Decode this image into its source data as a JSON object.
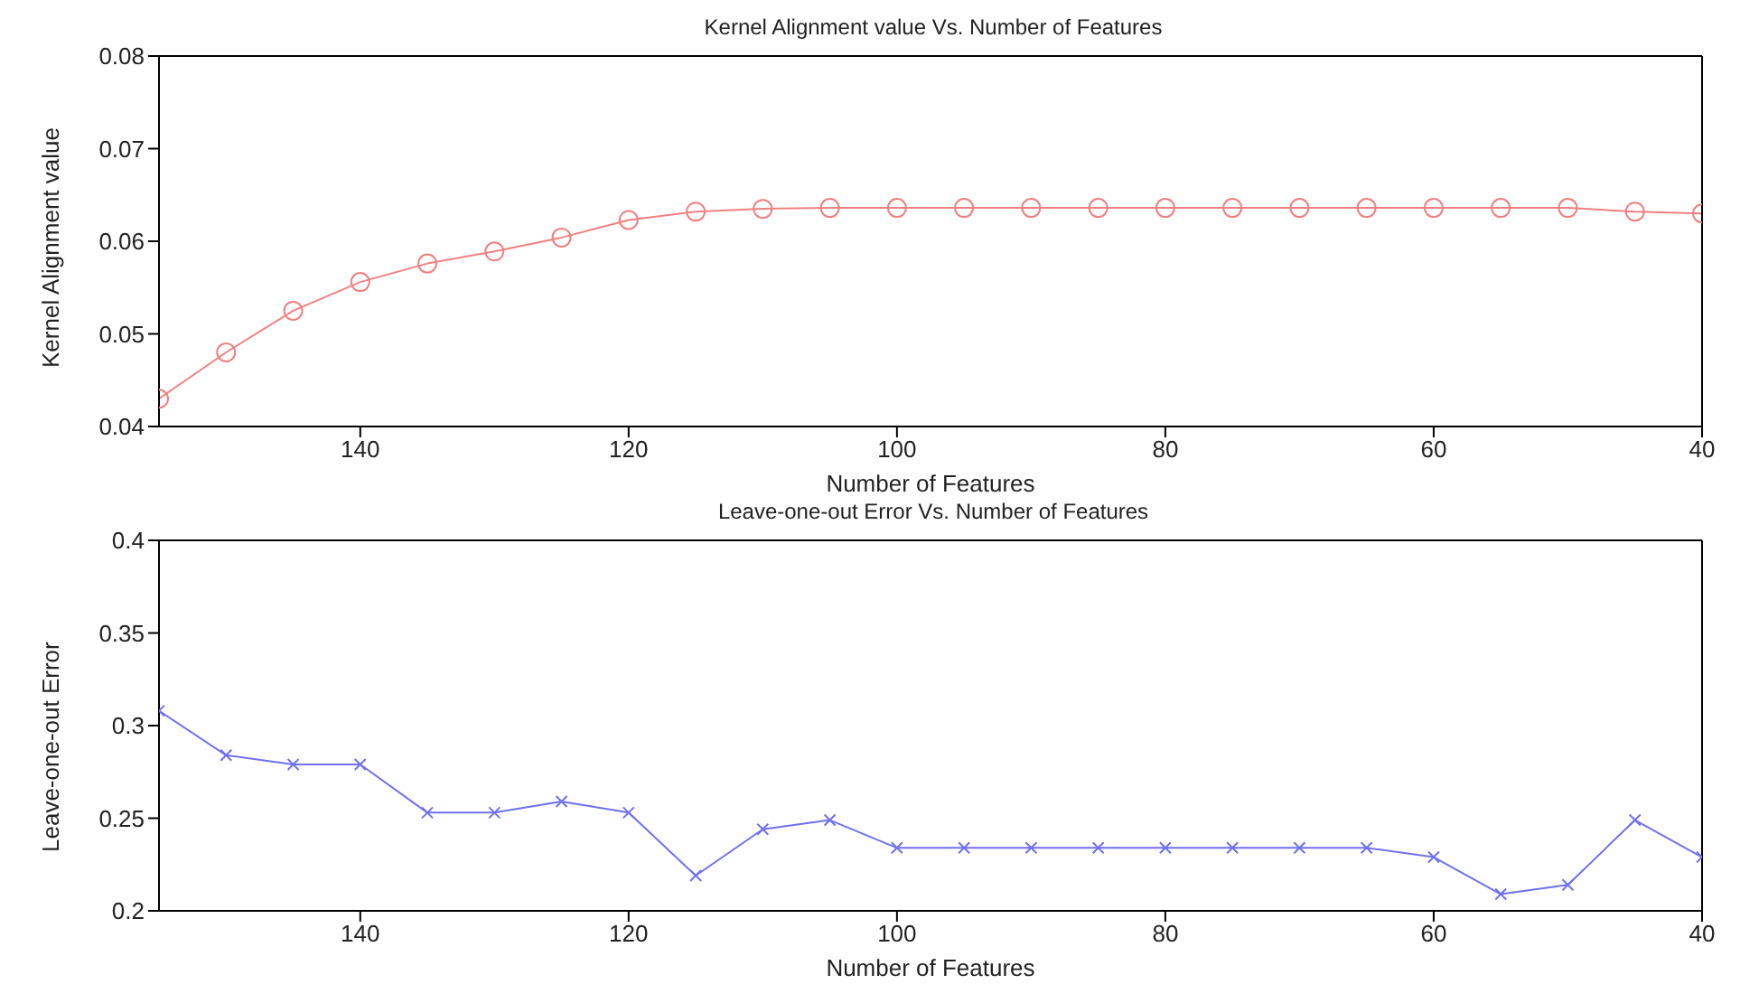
{
  "chart_data": [
    {
      "type": "line",
      "title": "Kernel Alignment value Vs. Number of Features",
      "xlabel": "Number of Features",
      "ylabel": "Kernel Alignment value",
      "x": [
        155,
        150,
        145,
        140,
        135,
        130,
        125,
        120,
        115,
        110,
        105,
        100,
        95,
        90,
        85,
        80,
        75,
        70,
        65,
        60,
        55,
        50,
        45,
        40
      ],
      "series": [
        {
          "color": "#f08080",
          "values": [
            0.043,
            0.048,
            0.0525,
            0.0556,
            0.0576,
            0.0589,
            0.0604,
            0.0623,
            0.0632,
            0.0635,
            0.0636,
            0.0636,
            0.0636,
            0.0636,
            0.0636,
            0.0636,
            0.0636,
            0.0636,
            0.0636,
            0.0636,
            0.0636,
            0.0636,
            0.0632,
            0.063
          ]
        }
      ],
      "xlim": [
        155,
        40
      ],
      "xticks": [
        140,
        120,
        100,
        80,
        60,
        40
      ],
      "ylim": [
        0.04,
        0.08
      ],
      "yticks": [
        0.04,
        0.05,
        0.06,
        0.07,
        0.08
      ],
      "marker": "circle",
      "line_style": "solid"
    },
    {
      "type": "line",
      "title": "Leave-one-out Error Vs. Number of Features",
      "xlabel": "Number of Features",
      "ylabel": "Leave-one-out Error",
      "x": [
        155,
        150,
        145,
        140,
        135,
        130,
        125,
        120,
        115,
        110,
        105,
        100,
        95,
        90,
        85,
        80,
        75,
        70,
        65,
        60,
        55,
        50,
        45,
        40
      ],
      "series": [
        {
          "color": "#7070f0",
          "values": [
            0.308,
            0.284,
            0.279,
            0.279,
            0.253,
            0.253,
            0.259,
            0.253,
            0.219,
            0.244,
            0.249,
            0.234,
            0.234,
            0.234,
            0.234,
            0.234,
            0.234,
            0.234,
            0.234,
            0.229,
            0.209,
            0.214,
            0.249,
            0.229
          ]
        }
      ],
      "xlim": [
        155,
        40
      ],
      "xticks": [
        140,
        120,
        100,
        80,
        60,
        40
      ],
      "ylim": [
        0.2,
        0.4
      ],
      "yticks": [
        0.2,
        0.25,
        0.3,
        0.35,
        0.4
      ],
      "marker": "cross",
      "line_style": "solid"
    }
  ]
}
